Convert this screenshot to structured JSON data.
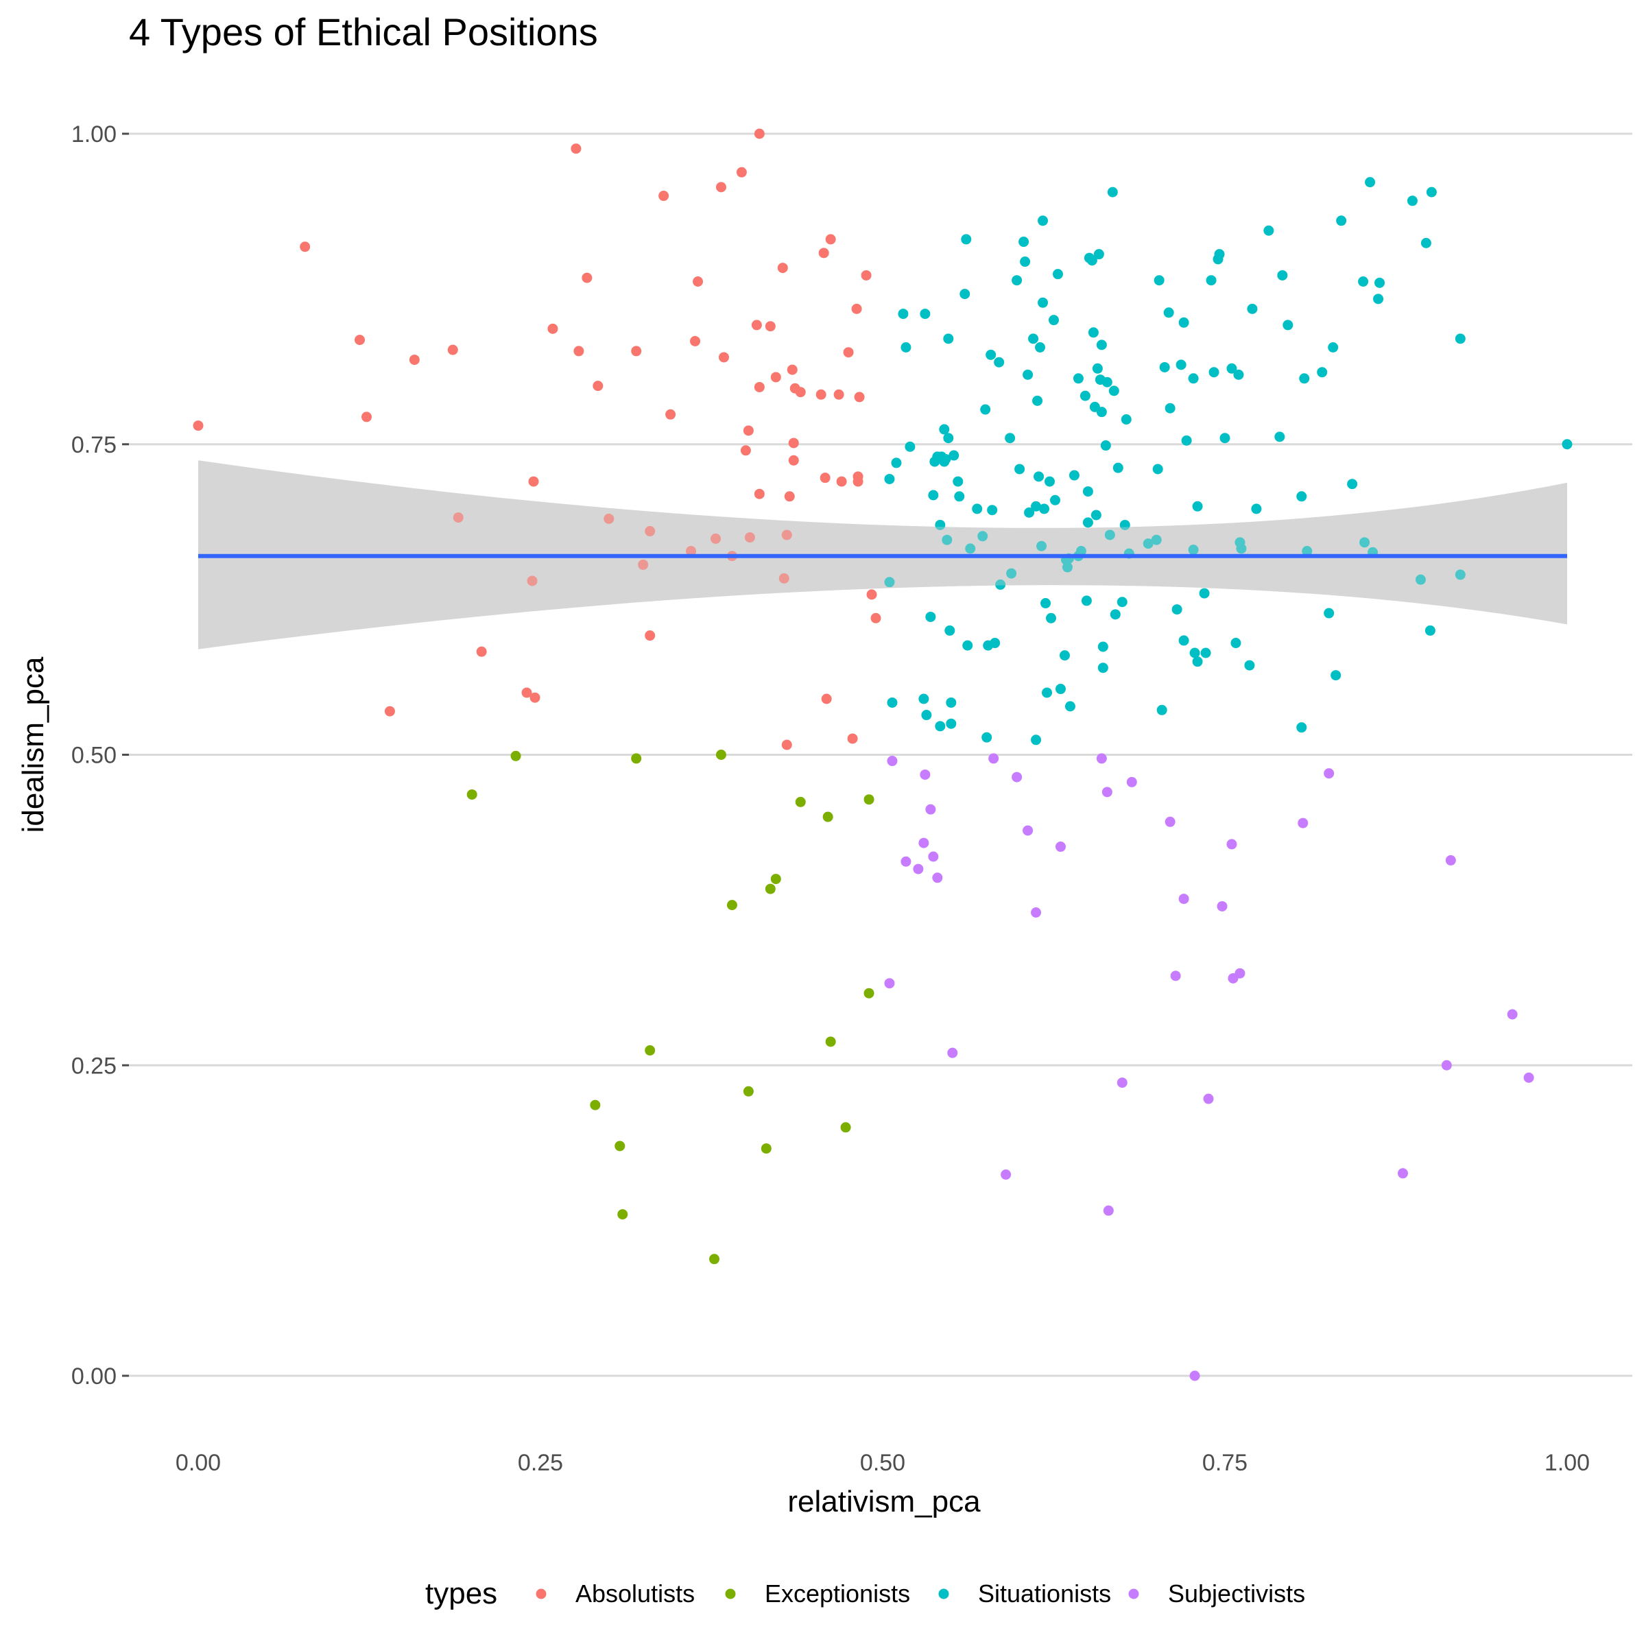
{
  "chart_data": {
    "type": "scatter",
    "title": "4 Types of Ethical Positions",
    "xlabel": "relativism_pca",
    "ylabel": "idealism_pca",
    "xlim": [
      -0.05,
      1.05
    ],
    "ylim": [
      -0.035,
      1.035
    ],
    "x_ticks": [
      "0.00",
      "0.25",
      "0.50",
      "0.75",
      "1.00"
    ],
    "y_ticks": [
      "0.00",
      "0.25",
      "0.50",
      "0.75",
      "1.00"
    ],
    "grid": "horizontal major",
    "legend_title": "types",
    "legend_position": "bottom",
    "fit": {
      "type": "linear",
      "y": 0.66,
      "color": "#3366ff",
      "band_color": "#d6d6d6",
      "band_left": [
        0.585,
        0.737
      ],
      "band_mid": [
        0.636,
        0.683
      ],
      "band_mid_x": 0.63,
      "band_right": [
        0.605,
        0.719
      ]
    },
    "series": [
      {
        "name": "Absolutists",
        "color": "#f8766d",
        "points": [
          [
            0.0,
            0.765
          ],
          [
            0.078,
            0.909
          ],
          [
            0.118,
            0.834
          ],
          [
            0.123,
            0.772
          ],
          [
            0.14,
            0.535
          ],
          [
            0.158,
            0.818
          ],
          [
            0.186,
            0.826
          ],
          [
            0.19,
            0.691
          ],
          [
            0.207,
            0.583
          ],
          [
            0.24,
            0.55
          ],
          [
            0.244,
            0.64
          ],
          [
            0.245,
            0.72
          ],
          [
            0.246,
            0.546
          ],
          [
            0.259,
            0.843
          ],
          [
            0.276,
            0.988
          ],
          [
            0.278,
            0.825
          ],
          [
            0.284,
            0.884
          ],
          [
            0.292,
            0.797
          ],
          [
            0.3,
            0.69
          ],
          [
            0.32,
            0.825
          ],
          [
            0.325,
            0.653
          ],
          [
            0.33,
            0.68
          ],
          [
            0.33,
            0.596
          ],
          [
            0.34,
            0.95
          ],
          [
            0.345,
            0.774
          ],
          [
            0.36,
            0.664
          ],
          [
            0.363,
            0.833
          ],
          [
            0.365,
            0.881
          ],
          [
            0.378,
            0.674
          ],
          [
            0.382,
            0.957
          ],
          [
            0.384,
            0.82
          ],
          [
            0.39,
            0.66
          ],
          [
            0.397,
            0.969
          ],
          [
            0.4,
            0.745
          ],
          [
            0.402,
            0.761
          ],
          [
            0.403,
            0.675
          ],
          [
            0.408,
            0.846
          ],
          [
            0.41,
            1.0
          ],
          [
            0.41,
            0.71
          ],
          [
            0.41,
            0.796
          ],
          [
            0.418,
            0.845
          ],
          [
            0.422,
            0.804
          ],
          [
            0.427,
            0.892
          ],
          [
            0.428,
            0.642
          ],
          [
            0.43,
            0.677
          ],
          [
            0.43,
            0.508
          ],
          [
            0.432,
            0.708
          ],
          [
            0.434,
            0.81
          ],
          [
            0.435,
            0.751
          ],
          [
            0.435,
            0.737
          ],
          [
            0.436,
            0.795
          ],
          [
            0.44,
            0.792
          ],
          [
            0.455,
            0.79
          ],
          [
            0.457,
            0.904
          ],
          [
            0.458,
            0.723
          ],
          [
            0.459,
            0.545
          ],
          [
            0.462,
            0.915
          ],
          [
            0.468,
            0.79
          ],
          [
            0.47,
            0.72
          ],
          [
            0.475,
            0.824
          ],
          [
            0.478,
            0.513
          ],
          [
            0.481,
            0.859
          ],
          [
            0.482,
            0.724
          ],
          [
            0.482,
            0.72
          ],
          [
            0.483,
            0.788
          ],
          [
            0.488,
            0.886
          ],
          [
            0.492,
            0.629
          ],
          [
            0.495,
            0.61
          ]
        ]
      },
      {
        "name": "Exceptionists",
        "color": "#7cae00",
        "points": [
          [
            0.2,
            0.468
          ],
          [
            0.232,
            0.499
          ],
          [
            0.29,
            0.218
          ],
          [
            0.308,
            0.185
          ],
          [
            0.31,
            0.13
          ],
          [
            0.32,
            0.497
          ],
          [
            0.33,
            0.262
          ],
          [
            0.377,
            0.094
          ],
          [
            0.382,
            0.5
          ],
          [
            0.39,
            0.379
          ],
          [
            0.402,
            0.229
          ],
          [
            0.415,
            0.183
          ],
          [
            0.418,
            0.392
          ],
          [
            0.422,
            0.4
          ],
          [
            0.44,
            0.462
          ],
          [
            0.46,
            0.45
          ],
          [
            0.462,
            0.269
          ],
          [
            0.473,
            0.2
          ],
          [
            0.49,
            0.308
          ],
          [
            0.49,
            0.464
          ]
        ]
      },
      {
        "name": "Situationists",
        "color": "#00bfc4",
        "points": [
          [
            0.505,
            0.639
          ],
          [
            0.505,
            0.722
          ],
          [
            0.507,
            0.542
          ],
          [
            0.51,
            0.735
          ],
          [
            0.515,
            0.855
          ],
          [
            0.517,
            0.828
          ],
          [
            0.52,
            0.748
          ],
          [
            0.53,
            0.545
          ],
          [
            0.531,
            0.855
          ],
          [
            0.532,
            0.532
          ],
          [
            0.535,
            0.611
          ],
          [
            0.537,
            0.709
          ],
          [
            0.538,
            0.736
          ],
          [
            0.54,
            0.74
          ],
          [
            0.542,
            0.685
          ],
          [
            0.542,
            0.523
          ],
          [
            0.543,
            0.74
          ],
          [
            0.545,
            0.762
          ],
          [
            0.545,
            0.736
          ],
          [
            0.546,
            0.738
          ],
          [
            0.547,
            0.673
          ],
          [
            0.548,
            0.835
          ],
          [
            0.548,
            0.755
          ],
          [
            0.549,
            0.6
          ],
          [
            0.55,
            0.525
          ],
          [
            0.55,
            0.542
          ],
          [
            0.552,
            0.741
          ],
          [
            0.555,
            0.72
          ],
          [
            0.556,
            0.708
          ],
          [
            0.56,
            0.871
          ],
          [
            0.561,
            0.915
          ],
          [
            0.562,
            0.588
          ],
          [
            0.564,
            0.666
          ],
          [
            0.569,
            0.698
          ],
          [
            0.573,
            0.676
          ],
          [
            0.575,
            0.778
          ],
          [
            0.576,
            0.514
          ],
          [
            0.577,
            0.588
          ],
          [
            0.579,
            0.822
          ],
          [
            0.58,
            0.697
          ],
          [
            0.582,
            0.59
          ],
          [
            0.585,
            0.816
          ],
          [
            0.586,
            0.637
          ],
          [
            0.593,
            0.755
          ],
          [
            0.594,
            0.646
          ],
          [
            0.598,
            0.882
          ],
          [
            0.6,
            0.73
          ],
          [
            0.603,
            0.913
          ],
          [
            0.604,
            0.897
          ],
          [
            0.606,
            0.806
          ],
          [
            0.607,
            0.695
          ],
          [
            0.61,
            0.835
          ],
          [
            0.612,
            0.7
          ],
          [
            0.612,
            0.512
          ],
          [
            0.613,
            0.785
          ],
          [
            0.614,
            0.724
          ],
          [
            0.615,
            0.828
          ],
          [
            0.616,
            0.668
          ],
          [
            0.617,
            0.864
          ],
          [
            0.617,
            0.93
          ],
          [
            0.618,
            0.698
          ],
          [
            0.619,
            0.622
          ],
          [
            0.62,
            0.55
          ],
          [
            0.622,
            0.72
          ],
          [
            0.623,
            0.61
          ],
          [
            0.625,
            0.85
          ],
          [
            0.626,
            0.705
          ],
          [
            0.628,
            0.887
          ],
          [
            0.63,
            0.553
          ],
          [
            0.633,
            0.58
          ],
          [
            0.634,
            0.657
          ],
          [
            0.635,
            0.651
          ],
          [
            0.636,
            0.658
          ],
          [
            0.637,
            0.539
          ],
          [
            0.64,
            0.725
          ],
          [
            0.643,
            0.803
          ],
          [
            0.643,
            0.66
          ],
          [
            0.645,
            0.664
          ],
          [
            0.648,
            0.789
          ],
          [
            0.649,
            0.624
          ],
          [
            0.65,
            0.712
          ],
          [
            0.65,
            0.687
          ],
          [
            0.651,
            0.9
          ],
          [
            0.653,
            0.898
          ],
          [
            0.654,
            0.84
          ],
          [
            0.655,
            0.78
          ],
          [
            0.656,
            0.693
          ],
          [
            0.657,
            0.811
          ],
          [
            0.658,
            0.903
          ],
          [
            0.659,
            0.802
          ],
          [
            0.66,
            0.776
          ],
          [
            0.66,
            0.83
          ],
          [
            0.661,
            0.587
          ],
          [
            0.661,
            0.57
          ],
          [
            0.663,
            0.749
          ],
          [
            0.664,
            0.8
          ],
          [
            0.666,
            0.677
          ],
          [
            0.668,
            0.953
          ],
          [
            0.669,
            0.793
          ],
          [
            0.67,
            0.613
          ],
          [
            0.672,
            0.731
          ],
          [
            0.675,
            0.623
          ],
          [
            0.677,
            0.685
          ],
          [
            0.678,
            0.77
          ],
          [
            0.68,
            0.662
          ],
          [
            0.694,
            0.67
          ],
          [
            0.7,
            0.673
          ],
          [
            0.701,
            0.73
          ],
          [
            0.702,
            0.882
          ],
          [
            0.704,
            0.536
          ],
          [
            0.706,
            0.812
          ],
          [
            0.709,
            0.856
          ],
          [
            0.71,
            0.779
          ],
          [
            0.715,
            0.617
          ],
          [
            0.718,
            0.814
          ],
          [
            0.72,
            0.848
          ],
          [
            0.72,
            0.592
          ],
          [
            0.722,
            0.753
          ],
          [
            0.727,
            0.803
          ],
          [
            0.727,
            0.665
          ],
          [
            0.728,
            0.582
          ],
          [
            0.73,
            0.575
          ],
          [
            0.73,
            0.7
          ],
          [
            0.735,
            0.63
          ],
          [
            0.736,
            0.582
          ],
          [
            0.74,
            0.882
          ],
          [
            0.742,
            0.808
          ],
          [
            0.745,
            0.899
          ],
          [
            0.746,
            0.903
          ],
          [
            0.75,
            0.755
          ],
          [
            0.755,
            0.811
          ],
          [
            0.758,
            0.59
          ],
          [
            0.76,
            0.806
          ],
          [
            0.761,
            0.671
          ],
          [
            0.762,
            0.666
          ],
          [
            0.768,
            0.572
          ],
          [
            0.77,
            0.859
          ],
          [
            0.773,
            0.698
          ],
          [
            0.782,
            0.922
          ],
          [
            0.79,
            0.756
          ],
          [
            0.792,
            0.886
          ],
          [
            0.796,
            0.846
          ],
          [
            0.806,
            0.708
          ],
          [
            0.806,
            0.522
          ],
          [
            0.808,
            0.803
          ],
          [
            0.81,
            0.664
          ],
          [
            0.821,
            0.808
          ],
          [
            0.826,
            0.614
          ],
          [
            0.829,
            0.828
          ],
          [
            0.831,
            0.564
          ],
          [
            0.835,
            0.93
          ],
          [
            0.843,
            0.718
          ],
          [
            0.851,
            0.881
          ],
          [
            0.852,
            0.671
          ],
          [
            0.856,
            0.961
          ],
          [
            0.858,
            0.663
          ],
          [
            0.862,
            0.867
          ],
          [
            0.863,
            0.88
          ],
          [
            0.887,
            0.946
          ],
          [
            0.893,
            0.641
          ],
          [
            0.897,
            0.912
          ],
          [
            0.9,
            0.6
          ],
          [
            0.901,
            0.953
          ],
          [
            0.922,
            0.835
          ],
          [
            0.922,
            0.645
          ],
          [
            1.0,
            0.75
          ]
        ]
      },
      {
        "name": "Subjectivists",
        "color": "#c77cff",
        "points": [
          [
            0.505,
            0.316
          ],
          [
            0.507,
            0.495
          ],
          [
            0.517,
            0.414
          ],
          [
            0.526,
            0.408
          ],
          [
            0.53,
            0.429
          ],
          [
            0.531,
            0.484
          ],
          [
            0.535,
            0.456
          ],
          [
            0.537,
            0.418
          ],
          [
            0.54,
            0.401
          ],
          [
            0.551,
            0.26
          ],
          [
            0.59,
            0.162
          ],
          [
            0.581,
            0.497
          ],
          [
            0.598,
            0.482
          ],
          [
            0.606,
            0.439
          ],
          [
            0.612,
            0.373
          ],
          [
            0.63,
            0.426
          ],
          [
            0.66,
            0.497
          ],
          [
            0.664,
            0.47
          ],
          [
            0.665,
            0.133
          ],
          [
            0.675,
            0.236
          ],
          [
            0.682,
            0.478
          ],
          [
            0.71,
            0.446
          ],
          [
            0.714,
            0.322
          ],
          [
            0.72,
            0.384
          ],
          [
            0.728,
            0.0
          ],
          [
            0.738,
            0.223
          ],
          [
            0.748,
            0.378
          ],
          [
            0.755,
            0.428
          ],
          [
            0.756,
            0.32
          ],
          [
            0.761,
            0.324
          ],
          [
            0.807,
            0.445
          ],
          [
            0.826,
            0.485
          ],
          [
            0.88,
            0.163
          ],
          [
            0.912,
            0.25
          ],
          [
            0.915,
            0.415
          ],
          [
            0.96,
            0.291
          ],
          [
            0.972,
            0.24
          ]
        ]
      }
    ]
  }
}
